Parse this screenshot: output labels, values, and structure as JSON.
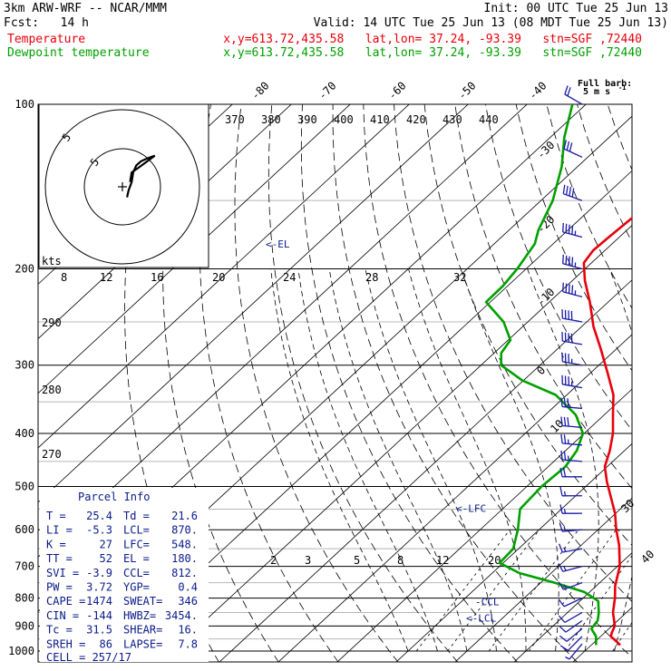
{
  "header": {
    "title": "3km ARW-WRF -- NCAR/MMM",
    "init": "Init: 00 UTC Tue 25 Jun 13",
    "fcst": "Fcst:   14 h",
    "valid": "Valid: 14 UTC Tue 25 Jun 13 (08 MDT Tue 25 Jun 13)",
    "temp_label": "Temperature",
    "temp_info": "x,y=613.72,435.58   lat,lon= 37.24, -93.39   stn=SGF ,72440",
    "dew_label": "Dewpoint temperature",
    "dew_info": "x,y=613.72,435.58   lat,lon= 37.24, -93.39   stn=SGF ,72440"
  },
  "barb_legend": {
    "line1": "Full barb:",
    "line2": "5 m s"
  },
  "colors": {
    "temperature": "#e8000b",
    "dewpoint": "#00a000",
    "info": "#0a1a8a",
    "barbs": "#1a1aa8"
  },
  "chart_data": {
    "type": "line",
    "style": "skew-T log-p",
    "pressure_range": [
      1000,
      100
    ],
    "pressure_ticks": [
      "100",
      "200",
      "300",
      "400",
      "500",
      "600",
      "700",
      "800",
      "900",
      "1000"
    ],
    "isotherm_top_labels": [
      "-80",
      "-70",
      "-60",
      "-50",
      "-40"
    ],
    "isotherm_right_labels": [
      "-30",
      "-20",
      "-10",
      "0",
      "10"
    ],
    "edge_labels": [
      "30",
      "40"
    ],
    "theta_e_labels": [
      "370",
      "380",
      "390",
      "400",
      "410",
      "420",
      "430",
      "440"
    ],
    "dry_adiabat_labels": [
      "290",
      "280",
      "270"
    ],
    "mixing_ratio_labels": [
      "2",
      "3",
      "5",
      "8",
      "12",
      "20"
    ],
    "series": [
      {
        "name": "Temperature",
        "color": "#e8000b",
        "points": [
          {
            "p": 975,
            "t": 24.9
          },
          {
            "p": 960,
            "t": 23.6
          },
          {
            "p": 940,
            "t": 21.7
          },
          {
            "p": 925,
            "t": 21.2
          },
          {
            "p": 900,
            "t": 20.5
          },
          {
            "p": 880,
            "t": 19.4
          },
          {
            "p": 850,
            "t": 17.7
          },
          {
            "p": 800,
            "t": 15.4
          },
          {
            "p": 760,
            "t": 13.2
          },
          {
            "p": 700,
            "t": 10.4
          },
          {
            "p": 640,
            "t": 6.4
          },
          {
            "p": 600,
            "t": 3.1
          },
          {
            "p": 560,
            "t": -0.1
          },
          {
            "p": 520,
            "t": -4.1
          },
          {
            "p": 490,
            "t": -7.3
          },
          {
            "p": 460,
            "t": -10.4
          },
          {
            "p": 430,
            "t": -12.5
          },
          {
            "p": 400,
            "t": -15.1
          },
          {
            "p": 370,
            "t": -18.5
          },
          {
            "p": 340,
            "t": -22.1
          },
          {
            "p": 310,
            "t": -27.1
          },
          {
            "p": 280,
            "t": -32.7
          },
          {
            "p": 255,
            "t": -38.0
          },
          {
            "p": 230,
            "t": -43.1
          },
          {
            "p": 210,
            "t": -47.9
          },
          {
            "p": 195,
            "t": -51.3
          },
          {
            "p": 185,
            "t": -52.0
          },
          {
            "p": 175,
            "t": -51.8
          },
          {
            "p": 160,
            "t": -51.3
          },
          {
            "p": 145,
            "t": -50.8
          },
          {
            "p": 125,
            "t": -51.9
          },
          {
            "p": 100,
            "t": -54.5
          }
        ]
      },
      {
        "name": "Dewpoint temperature",
        "color": "#00a000",
        "points": [
          {
            "p": 975,
            "t": 20.8
          },
          {
            "p": 940,
            "t": 19.2
          },
          {
            "p": 910,
            "t": 17.0
          },
          {
            "p": 880,
            "t": 16.6
          },
          {
            "p": 850,
            "t": 15.3
          },
          {
            "p": 810,
            "t": 13.1
          },
          {
            "p": 780,
            "t": 9.1
          },
          {
            "p": 750,
            "t": 2.4
          },
          {
            "p": 720,
            "t": -5.4
          },
          {
            "p": 690,
            "t": -10.6
          },
          {
            "p": 650,
            "t": -10.9
          },
          {
            "p": 600,
            "t": -13.6
          },
          {
            "p": 550,
            "t": -17.0
          },
          {
            "p": 500,
            "t": -17.5
          },
          {
            "p": 460,
            "t": -17.1
          },
          {
            "p": 430,
            "t": -18.1
          },
          {
            "p": 400,
            "t": -20.2
          },
          {
            "p": 370,
            "t": -24.8
          },
          {
            "p": 340,
            "t": -31.9
          },
          {
            "p": 320,
            "t": -40.2
          },
          {
            "p": 300,
            "t": -46.6
          },
          {
            "p": 285,
            "t": -48.8
          },
          {
            "p": 270,
            "t": -49.6
          },
          {
            "p": 250,
            "t": -54.1
          },
          {
            "p": 230,
            "t": -60.7
          },
          {
            "p": 215,
            "t": -60.8
          },
          {
            "p": 200,
            "t": -61.5
          },
          {
            "p": 180,
            "t": -63.1
          },
          {
            "p": 170,
            "t": -65.0
          },
          {
            "p": 150,
            "t": -68.0
          },
          {
            "p": 130,
            "t": -72.7
          },
          {
            "p": 115,
            "t": -77.6
          },
          {
            "p": 100,
            "t": -82.3
          }
        ]
      }
    ],
    "level_markers": [
      {
        "label": "<-EL",
        "p": 180
      },
      {
        "label": "<-LFC",
        "p": 548
      },
      {
        "label": "-CCL",
        "p": 812
      },
      {
        "label": "<-LCL",
        "p": 870
      }
    ]
  },
  "hodograph": {
    "units_label": "kts",
    "ring_labels": [
      "5",
      "5"
    ],
    "scale_labels": [
      "8",
      "12",
      "16",
      "20",
      "24",
      "28",
      "32"
    ],
    "points": [
      [
        6,
        24
      ],
      [
        8,
        34
      ],
      [
        12,
        46
      ],
      [
        14,
        60
      ],
      [
        18,
        70
      ],
      [
        24,
        76
      ],
      [
        32,
        80
      ],
      [
        42,
        84
      ],
      [
        20,
        66
      ],
      [
        12,
        60
      ],
      [
        10,
        46
      ]
    ]
  },
  "parcel_info": {
    "title": "Parcel Info",
    "rows": [
      [
        "T  ",
        "25.4",
        "Td ",
        "21.6"
      ],
      [
        "LI ",
        "-5.3",
        "LCL",
        "870."
      ],
      [
        "K  ",
        "27",
        "LFC",
        "548."
      ],
      [
        "TT ",
        "52",
        "EL ",
        "180."
      ],
      [
        "SVI",
        "-3.9",
        "CCL",
        "812."
      ],
      [
        "PW ",
        "3.72",
        "YGP",
        "0.4"
      ],
      [
        "CAPE",
        "1474",
        "SWEAT",
        "346"
      ],
      [
        "CIN ",
        "-144",
        "HWBZ",
        "3454."
      ],
      [
        "Tc ",
        "31.5",
        "SHEAR",
        "16."
      ],
      [
        "SREH",
        "86",
        "LAPSE",
        "7.8"
      ]
    ],
    "cell": "CELL = 257/17"
  },
  "wind_profile": [
    {
      "p": 100,
      "dir": 300,
      "spd": 20
    },
    {
      "p": 125,
      "dir": 295,
      "spd": 30
    },
    {
      "p": 150,
      "dir": 290,
      "spd": 40
    },
    {
      "p": 175,
      "dir": 285,
      "spd": 45
    },
    {
      "p": 200,
      "dir": 285,
      "spd": 45
    },
    {
      "p": 225,
      "dir": 285,
      "spd": 45
    },
    {
      "p": 250,
      "dir": 280,
      "spd": 40
    },
    {
      "p": 275,
      "dir": 280,
      "spd": 40
    },
    {
      "p": 300,
      "dir": 280,
      "spd": 35
    },
    {
      "p": 330,
      "dir": 280,
      "spd": 35
    },
    {
      "p": 360,
      "dir": 275,
      "spd": 30
    },
    {
      "p": 390,
      "dir": 275,
      "spd": 30
    },
    {
      "p": 420,
      "dir": 275,
      "spd": 25
    },
    {
      "p": 450,
      "dir": 275,
      "spd": 25
    },
    {
      "p": 480,
      "dir": 270,
      "spd": 20
    },
    {
      "p": 520,
      "dir": 270,
      "spd": 15
    },
    {
      "p": 560,
      "dir": 270,
      "spd": 15
    },
    {
      "p": 600,
      "dir": 265,
      "spd": 15
    },
    {
      "p": 650,
      "dir": 260,
      "spd": 15
    },
    {
      "p": 700,
      "dir": 255,
      "spd": 15
    },
    {
      "p": 750,
      "dir": 250,
      "spd": 15
    },
    {
      "p": 800,
      "dir": 245,
      "spd": 10
    },
    {
      "p": 850,
      "dir": 240,
      "spd": 10
    },
    {
      "p": 880,
      "dir": 235,
      "spd": 10
    },
    {
      "p": 910,
      "dir": 230,
      "spd": 10
    },
    {
      "p": 940,
      "dir": 225,
      "spd": 10
    },
    {
      "p": 970,
      "dir": 220,
      "spd": 5
    }
  ]
}
